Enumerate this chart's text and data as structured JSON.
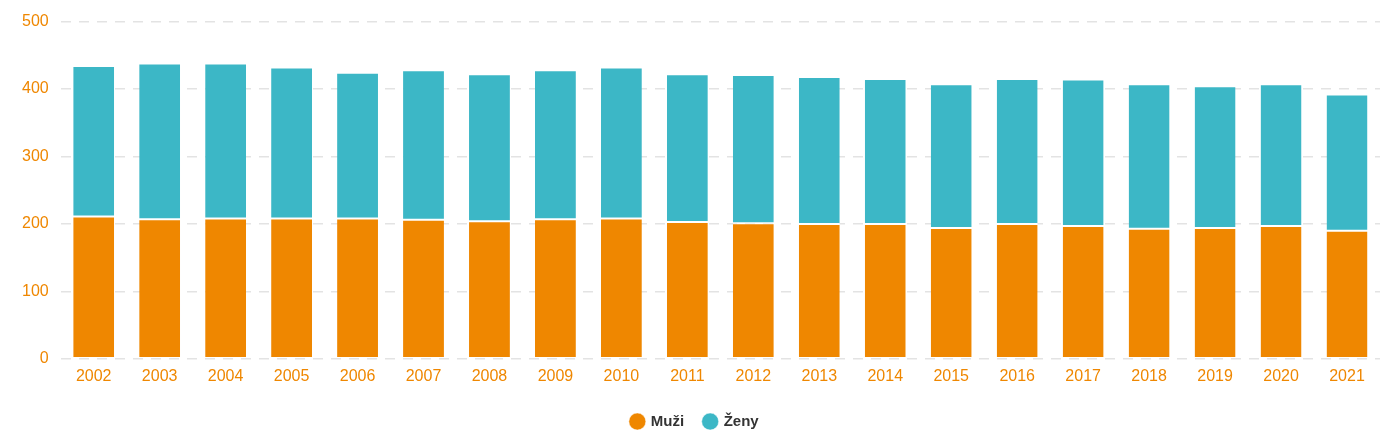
{
  "chart_data": {
    "type": "bar",
    "stacked": true,
    "categories": [
      "2002",
      "2003",
      "2004",
      "2005",
      "2006",
      "2007",
      "2008",
      "2009",
      "2010",
      "2011",
      "2012",
      "2013",
      "2014",
      "2015",
      "2016",
      "2017",
      "2018",
      "2019",
      "2020",
      "2021"
    ],
    "series": [
      {
        "name": "Muži",
        "color": "#ef8700",
        "values": [
          211,
          207,
          208,
          208,
          208,
          206,
          204,
          207,
          208,
          203,
          201,
          200,
          200,
          194,
          200,
          197,
          193,
          194,
          197,
          190
        ]
      },
      {
        "name": "Ženy",
        "color": "#3cb7c6",
        "values": [
          223,
          231,
          230,
          224,
          216,
          222,
          218,
          221,
          224,
          219,
          220,
          218,
          215,
          213,
          215,
          217,
          214,
          210,
          210,
          202
        ]
      }
    ],
    "ylim": [
      0,
      500
    ],
    "yticks": [
      0,
      100,
      200,
      300,
      400,
      500
    ],
    "grid": "y",
    "legend": "bottom",
    "marker": "circle"
  }
}
